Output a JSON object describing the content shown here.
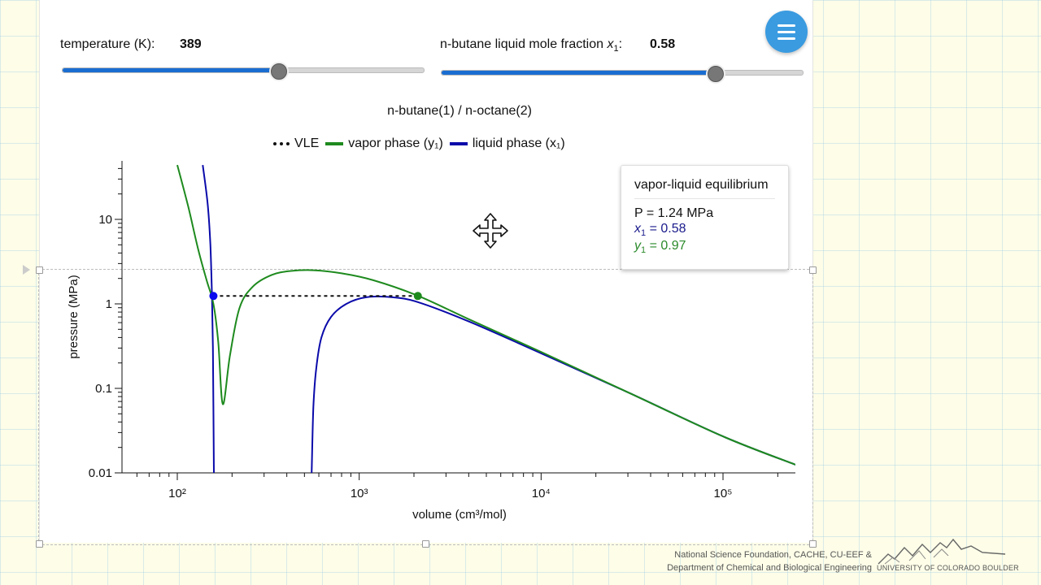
{
  "controls": {
    "temperature_label": "temperature (K):",
    "temperature_value": "389",
    "temperature_fraction": 0.598,
    "fraction_label": "n-butane liquid mole fraction ",
    "fraction_symbol": "x",
    "fraction_subscript": "1",
    "fraction_colon": ":",
    "fraction_value": "0.58",
    "fraction_fraction": 0.76
  },
  "menu": {
    "icon": "hamburger-menu-icon"
  },
  "cursor": {
    "icon": "move-cursor-icon"
  },
  "chart_data": {
    "type": "line",
    "title": "n-butane(1) / n-octane(2)",
    "xlabel": "volume (cm³/mol)",
    "ylabel": "pressure (MPa)",
    "xscale": "log",
    "yscale": "log",
    "xlim": [
      50,
      250000
    ],
    "ylim": [
      0.01,
      50
    ],
    "x_ticks": [
      "10²",
      "10³",
      "10⁴",
      "10⁵"
    ],
    "y_ticks": [
      "0.01",
      "0.1",
      "1",
      "10"
    ],
    "legend": [
      {
        "label": "VLE",
        "style": "dotted",
        "color": "#111111"
      },
      {
        "label": "vapor phase (y₁)",
        "color": "#1e8a1e"
      },
      {
        "label": "liquid phase (x₁)",
        "color": "#0a0aaa"
      }
    ],
    "series": [
      {
        "name": "vapor phase (y₁)",
        "color": "#1e8a1e",
        "points": [
          [
            100,
            44
          ],
          [
            115,
            14
          ],
          [
            130,
            4.5
          ],
          [
            145,
            1.9
          ],
          [
            158,
            1.0
          ],
          [
            168,
            0.35
          ],
          [
            178,
            0.065
          ],
          [
            195,
            0.25
          ],
          [
            220,
            0.9
          ],
          [
            260,
            1.6
          ],
          [
            330,
            2.2
          ],
          [
            420,
            2.45
          ],
          [
            560,
            2.5
          ],
          [
            800,
            2.3
          ],
          [
            1200,
            1.9
          ],
          [
            2100,
            1.25
          ],
          [
            4000,
            0.66
          ],
          [
            10000,
            0.27
          ],
          [
            30000,
            0.09
          ],
          [
            100000,
            0.027
          ],
          [
            250000,
            0.0125
          ]
        ]
      },
      {
        "name": "liquid phase (x₁)",
        "color": "#0a0aaa",
        "points": [
          [
            138,
            44
          ],
          [
            147,
            15
          ],
          [
            152,
            5
          ],
          [
            155,
            1.3
          ],
          [
            157,
            0.3
          ],
          [
            158,
            0.06
          ],
          [
            159,
            0.01
          ]
        ]
      },
      {
        "name": "liquid phase (x₁)",
        "color": "#0a0aaa",
        "points": [
          [
            548,
            0.01
          ],
          [
            560,
            0.06
          ],
          [
            580,
            0.17
          ],
          [
            620,
            0.4
          ],
          [
            700,
            0.7
          ],
          [
            850,
            1.0
          ],
          [
            1100,
            1.2
          ],
          [
            1500,
            1.2
          ],
          [
            2100,
            1.05
          ],
          [
            4000,
            0.62
          ],
          [
            10000,
            0.26
          ],
          [
            30000,
            0.09
          ],
          [
            100000,
            0.027
          ],
          [
            250000,
            0.0125
          ]
        ]
      }
    ],
    "vle_line": {
      "x": [
        158,
        2100
      ],
      "y": 1.24
    },
    "vle_points": [
      {
        "x": 158,
        "y": 1.24,
        "color": "#0a0aee"
      },
      {
        "x": 2100,
        "y": 1.24,
        "color": "#1e8a1e"
      }
    ]
  },
  "tooltip": {
    "title": "vapor-liquid equilibrium",
    "pressure": "P = 1.24 MPa",
    "x_sym": "x",
    "x_sub": "1",
    "x_val": " = 0.58",
    "y_sym": "y",
    "y_sub": "1",
    "y_val": " = 0.97",
    "x_color": "#1a1a8c",
    "y_color": "#2a8a2a"
  },
  "footer": {
    "line1": "National Science Foundation, CACHE, CU-EEF &",
    "line2": "Department of Chemical and Biological Engineering",
    "university": "UNIVERSITY OF COLORADO BOULDER",
    "logo": "mountains-logo"
  }
}
